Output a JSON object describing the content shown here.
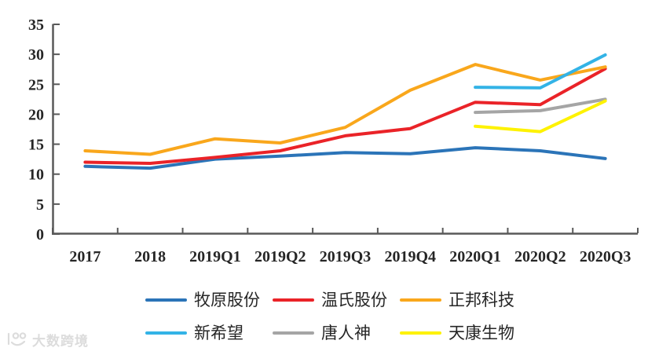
{
  "watermark": {
    "logo_icon": "dashu-smiley-logo",
    "text": "大数跨境"
  },
  "chart_data": {
    "type": "line",
    "title": "",
    "xlabel": "",
    "ylabel": "",
    "categories": [
      "2017",
      "2018",
      "2019Q1",
      "2019Q2",
      "2019Q3",
      "2019Q4",
      "2020Q1",
      "2020Q2",
      "2020Q3"
    ],
    "series": [
      {
        "name": "牧原股份",
        "color": "#2B74B8",
        "values": [
          11.3,
          11.0,
          12.5,
          13.0,
          13.6,
          13.4,
          14.4,
          13.9,
          12.6
        ]
      },
      {
        "name": "温氏股份",
        "color": "#EA2328",
        "values": [
          12.0,
          11.8,
          12.8,
          13.9,
          16.4,
          17.6,
          22.0,
          21.6,
          27.6
        ]
      },
      {
        "name": "正邦科技",
        "color": "#F9A71C",
        "values": [
          13.9,
          13.3,
          15.9,
          15.2,
          17.8,
          24.0,
          28.3,
          25.7,
          27.9
        ]
      },
      {
        "name": "新希望",
        "color": "#33B3E6",
        "values": [
          null,
          null,
          null,
          null,
          null,
          null,
          24.5,
          24.4,
          29.9
        ]
      },
      {
        "name": "唐人神",
        "color": "#A5A5A5",
        "values": [
          null,
          null,
          null,
          null,
          null,
          null,
          20.3,
          20.6,
          22.5
        ]
      },
      {
        "name": "天康生物",
        "color": "#FEF200",
        "values": [
          null,
          null,
          null,
          null,
          null,
          null,
          18.0,
          17.1,
          22.2
        ]
      }
    ],
    "ylim": [
      0,
      35
    ],
    "ytick_step": 5,
    "ytick_labels": [
      "0",
      "5",
      "10",
      "15",
      "20",
      "25",
      "30",
      "35"
    ],
    "grid": false,
    "legend_position": "bottom",
    "axis_color": "#595959",
    "tick_label_color": "#262626",
    "line_width": 4
  }
}
